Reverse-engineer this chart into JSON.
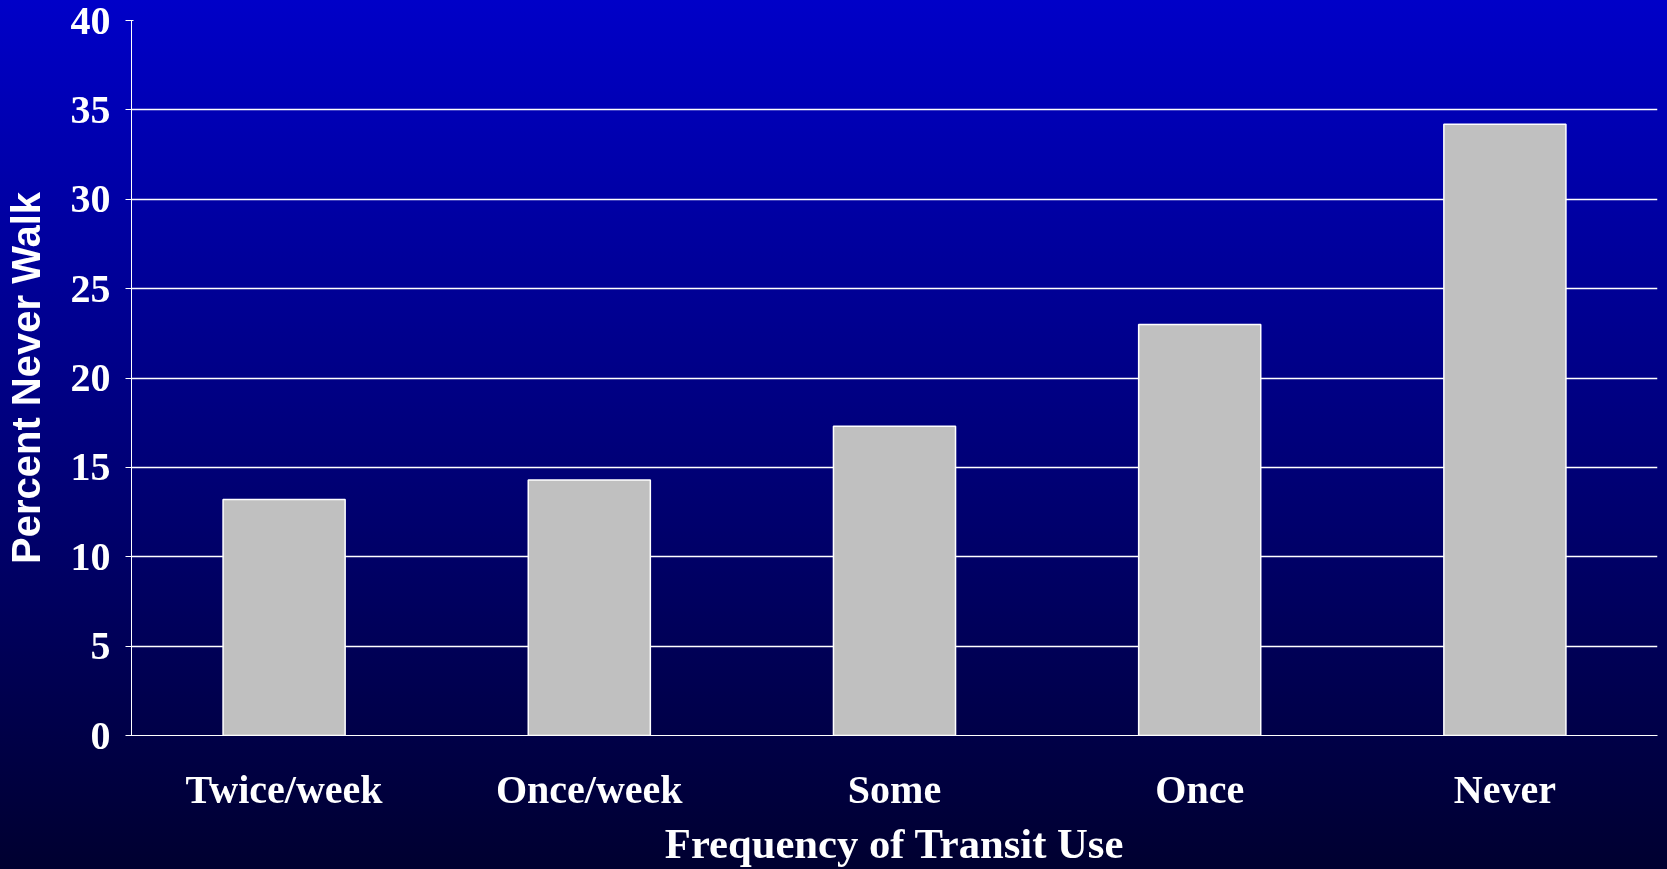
{
  "chart_data": {
    "type": "bar",
    "xlabel": "Frequency of Transit Use",
    "ylabel": "Percent Never Walk",
    "categories": [
      "Twice/week",
      "Once/week",
      "Some",
      "Once",
      "Never"
    ],
    "values": [
      13.2,
      14.3,
      17.3,
      23.0,
      34.2
    ],
    "color": "#c0c0c0",
    "ylim": [
      0,
      40
    ],
    "yticks": [
      0,
      5,
      10,
      15,
      20,
      25,
      30,
      35,
      40
    ],
    "grid": "y"
  }
}
